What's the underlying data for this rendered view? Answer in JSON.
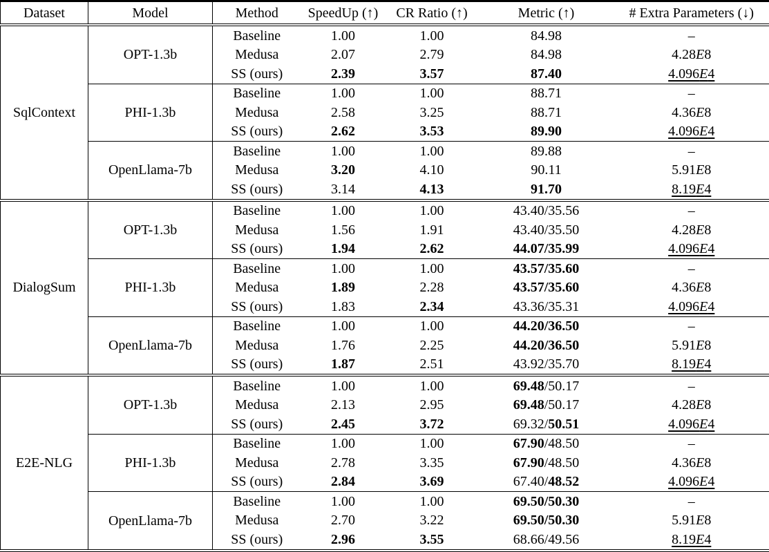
{
  "colors": {
    "text": "#000000",
    "background": "#ffffff",
    "rules": "#000000"
  },
  "table": {
    "columns": [
      "Dataset",
      "Model",
      "Method",
      "SpeedUp (↑)",
      "CR Ratio (↑)",
      "Metric (↑)",
      "# Extra Parameters (↓)"
    ],
    "datasets": [
      {
        "name": "SqlContext",
        "models": [
          {
            "name": "OPT-1.3b",
            "rows": [
              {
                "method": "Baseline",
                "speedup": {
                  "text": "1.00",
                  "bold": false
                },
                "cr": {
                  "text": "1.00",
                  "bold": false
                },
                "metric": {
                  "segments": [
                    {
                      "text": "84.98",
                      "bold": false
                    }
                  ]
                },
                "extra": {
                  "text": "–",
                  "underline": false
                }
              },
              {
                "method": "Medusa",
                "speedup": {
                  "text": "2.07",
                  "bold": false
                },
                "cr": {
                  "text": "2.79",
                  "bold": false
                },
                "metric": {
                  "segments": [
                    {
                      "text": "84.98",
                      "bold": false
                    }
                  ]
                },
                "extra": {
                  "text": "4.28E8",
                  "underline": false
                }
              },
              {
                "method": "SS (ours)",
                "speedup": {
                  "text": "2.39",
                  "bold": true
                },
                "cr": {
                  "text": "3.57",
                  "bold": true
                },
                "metric": {
                  "segments": [
                    {
                      "text": "87.40",
                      "bold": true
                    }
                  ]
                },
                "extra": {
                  "text": "4.096E4",
                  "underline": true
                }
              }
            ]
          },
          {
            "name": "PHI-1.3b",
            "rows": [
              {
                "method": "Baseline",
                "speedup": {
                  "text": "1.00",
                  "bold": false
                },
                "cr": {
                  "text": "1.00",
                  "bold": false
                },
                "metric": {
                  "segments": [
                    {
                      "text": "88.71",
                      "bold": false
                    }
                  ]
                },
                "extra": {
                  "text": "–",
                  "underline": false
                }
              },
              {
                "method": "Medusa",
                "speedup": {
                  "text": "2.58",
                  "bold": false
                },
                "cr": {
                  "text": "3.25",
                  "bold": false
                },
                "metric": {
                  "segments": [
                    {
                      "text": "88.71",
                      "bold": false
                    }
                  ]
                },
                "extra": {
                  "text": "4.36E8",
                  "underline": false
                }
              },
              {
                "method": "SS (ours)",
                "speedup": {
                  "text": "2.62",
                  "bold": true
                },
                "cr": {
                  "text": "3.53",
                  "bold": true
                },
                "metric": {
                  "segments": [
                    {
                      "text": "89.90",
                      "bold": true
                    }
                  ]
                },
                "extra": {
                  "text": "4.096E4",
                  "underline": true
                }
              }
            ]
          },
          {
            "name": "OpenLlama-7b",
            "rows": [
              {
                "method": "Baseline",
                "speedup": {
                  "text": "1.00",
                  "bold": false
                },
                "cr": {
                  "text": "1.00",
                  "bold": false
                },
                "metric": {
                  "segments": [
                    {
                      "text": "89.88",
                      "bold": false
                    }
                  ]
                },
                "extra": {
                  "text": "–",
                  "underline": false
                }
              },
              {
                "method": "Medusa",
                "speedup": {
                  "text": "3.20",
                  "bold": true
                },
                "cr": {
                  "text": "4.10",
                  "bold": false
                },
                "metric": {
                  "segments": [
                    {
                      "text": "90.11",
                      "bold": false
                    }
                  ]
                },
                "extra": {
                  "text": "5.91E8",
                  "underline": false
                }
              },
              {
                "method": "SS (ours)",
                "speedup": {
                  "text": "3.14",
                  "bold": false
                },
                "cr": {
                  "text": "4.13",
                  "bold": true
                },
                "metric": {
                  "segments": [
                    {
                      "text": "91.70",
                      "bold": true
                    }
                  ]
                },
                "extra": {
                  "text": "8.19E4",
                  "underline": true
                }
              }
            ]
          }
        ]
      },
      {
        "name": "DialogSum",
        "models": [
          {
            "name": "OPT-1.3b",
            "rows": [
              {
                "method": "Baseline",
                "speedup": {
                  "text": "1.00",
                  "bold": false
                },
                "cr": {
                  "text": "1.00",
                  "bold": false
                },
                "metric": {
                  "segments": [
                    {
                      "text": "43.40/35.56",
                      "bold": false
                    }
                  ]
                },
                "extra": {
                  "text": "–",
                  "underline": false
                }
              },
              {
                "method": "Medusa",
                "speedup": {
                  "text": "1.56",
                  "bold": false
                },
                "cr": {
                  "text": "1.91",
                  "bold": false
                },
                "metric": {
                  "segments": [
                    {
                      "text": "43.40/35.50",
                      "bold": false
                    }
                  ]
                },
                "extra": {
                  "text": "4.28E8",
                  "underline": false
                }
              },
              {
                "method": "SS (ours)",
                "speedup": {
                  "text": "1.94",
                  "bold": true
                },
                "cr": {
                  "text": "2.62",
                  "bold": true
                },
                "metric": {
                  "segments": [
                    {
                      "text": "44.07/35.99",
                      "bold": true
                    }
                  ]
                },
                "extra": {
                  "text": "4.096E4",
                  "underline": true
                }
              }
            ]
          },
          {
            "name": "PHI-1.3b",
            "rows": [
              {
                "method": "Baseline",
                "speedup": {
                  "text": "1.00",
                  "bold": false
                },
                "cr": {
                  "text": "1.00",
                  "bold": false
                },
                "metric": {
                  "segments": [
                    {
                      "text": "43.57/35.60",
                      "bold": true
                    }
                  ]
                },
                "extra": {
                  "text": "–",
                  "underline": false
                }
              },
              {
                "method": "Medusa",
                "speedup": {
                  "text": "1.89",
                  "bold": true
                },
                "cr": {
                  "text": "2.28",
                  "bold": false
                },
                "metric": {
                  "segments": [
                    {
                      "text": "43.57/35.60",
                      "bold": true
                    }
                  ]
                },
                "extra": {
                  "text": "4.36E8",
                  "underline": false
                }
              },
              {
                "method": "SS (ours)",
                "speedup": {
                  "text": "1.83",
                  "bold": false
                },
                "cr": {
                  "text": "2.34",
                  "bold": true
                },
                "metric": {
                  "segments": [
                    {
                      "text": "43.36/35.31",
                      "bold": false
                    }
                  ]
                },
                "extra": {
                  "text": "4.096E4",
                  "underline": true
                }
              }
            ]
          },
          {
            "name": "OpenLlama-7b",
            "rows": [
              {
                "method": "Baseline",
                "speedup": {
                  "text": "1.00",
                  "bold": false
                },
                "cr": {
                  "text": "1.00",
                  "bold": false
                },
                "metric": {
                  "segments": [
                    {
                      "text": "44.20/36.50",
                      "bold": true
                    }
                  ]
                },
                "extra": {
                  "text": "–",
                  "underline": false
                }
              },
              {
                "method": "Medusa",
                "speedup": {
                  "text": "1.76",
                  "bold": false
                },
                "cr": {
                  "text": "2.25",
                  "bold": false
                },
                "metric": {
                  "segments": [
                    {
                      "text": "44.20/36.50",
                      "bold": true
                    }
                  ]
                },
                "extra": {
                  "text": "5.91E8",
                  "underline": false
                }
              },
              {
                "method": "SS (ours)",
                "speedup": {
                  "text": "1.87",
                  "bold": true
                },
                "cr": {
                  "text": "2.51",
                  "bold": false
                },
                "metric": {
                  "segments": [
                    {
                      "text": "43.92/35.70",
                      "bold": false
                    }
                  ]
                },
                "extra": {
                  "text": "8.19E4",
                  "underline": true
                }
              }
            ]
          }
        ]
      },
      {
        "name": "E2E-NLG",
        "models": [
          {
            "name": "OPT-1.3b",
            "rows": [
              {
                "method": "Baseline",
                "speedup": {
                  "text": "1.00",
                  "bold": false
                },
                "cr": {
                  "text": "1.00",
                  "bold": false
                },
                "metric": {
                  "segments": [
                    {
                      "text": "69.48",
                      "bold": true
                    },
                    {
                      "text": "/50.17",
                      "bold": false
                    }
                  ]
                },
                "extra": {
                  "text": "–",
                  "underline": false
                }
              },
              {
                "method": "Medusa",
                "speedup": {
                  "text": "2.13",
                  "bold": false
                },
                "cr": {
                  "text": "2.95",
                  "bold": false
                },
                "metric": {
                  "segments": [
                    {
                      "text": "69.48",
                      "bold": true
                    },
                    {
                      "text": "/50.17",
                      "bold": false
                    }
                  ]
                },
                "extra": {
                  "text": "4.28E8",
                  "underline": false
                }
              },
              {
                "method": "SS (ours)",
                "speedup": {
                  "text": "2.45",
                  "bold": true
                },
                "cr": {
                  "text": "3.72",
                  "bold": true
                },
                "metric": {
                  "segments": [
                    {
                      "text": "69.32/",
                      "bold": false
                    },
                    {
                      "text": "50.51",
                      "bold": true
                    }
                  ]
                },
                "extra": {
                  "text": "4.096E4",
                  "underline": true
                }
              }
            ]
          },
          {
            "name": "PHI-1.3b",
            "rows": [
              {
                "method": "Baseline",
                "speedup": {
                  "text": "1.00",
                  "bold": false
                },
                "cr": {
                  "text": "1.00",
                  "bold": false
                },
                "metric": {
                  "segments": [
                    {
                      "text": "67.90",
                      "bold": true
                    },
                    {
                      "text": "/48.50",
                      "bold": false
                    }
                  ]
                },
                "extra": {
                  "text": "–",
                  "underline": false
                }
              },
              {
                "method": "Medusa",
                "speedup": {
                  "text": "2.78",
                  "bold": false
                },
                "cr": {
                  "text": "3.35",
                  "bold": false
                },
                "metric": {
                  "segments": [
                    {
                      "text": "67.90",
                      "bold": true
                    },
                    {
                      "text": "/48.50",
                      "bold": false
                    }
                  ]
                },
                "extra": {
                  "text": "4.36E8",
                  "underline": false
                }
              },
              {
                "method": "SS (ours)",
                "speedup": {
                  "text": "2.84",
                  "bold": true
                },
                "cr": {
                  "text": "3.69",
                  "bold": true
                },
                "metric": {
                  "segments": [
                    {
                      "text": "67.40/",
                      "bold": false
                    },
                    {
                      "text": "48.52",
                      "bold": true
                    }
                  ]
                },
                "extra": {
                  "text": "4.096E4",
                  "underline": true
                }
              }
            ]
          },
          {
            "name": "OpenLlama-7b",
            "rows": [
              {
                "method": "Baseline",
                "speedup": {
                  "text": "1.00",
                  "bold": false
                },
                "cr": {
                  "text": "1.00",
                  "bold": false
                },
                "metric": {
                  "segments": [
                    {
                      "text": "69.50/50.30",
                      "bold": true
                    }
                  ]
                },
                "extra": {
                  "text": "–",
                  "underline": false
                }
              },
              {
                "method": "Medusa",
                "speedup": {
                  "text": "2.70",
                  "bold": false
                },
                "cr": {
                  "text": "3.22",
                  "bold": false
                },
                "metric": {
                  "segments": [
                    {
                      "text": "69.50/50.30",
                      "bold": true
                    }
                  ]
                },
                "extra": {
                  "text": "5.91E8",
                  "underline": false
                }
              },
              {
                "method": "SS (ours)",
                "speedup": {
                  "text": "2.96",
                  "bold": true
                },
                "cr": {
                  "text": "3.55",
                  "bold": true
                },
                "metric": {
                  "segments": [
                    {
                      "text": "68.66/49.56",
                      "bold": false
                    }
                  ]
                },
                "extra": {
                  "text": "8.19E4",
                  "underline": true
                }
              }
            ]
          }
        ]
      }
    ]
  }
}
